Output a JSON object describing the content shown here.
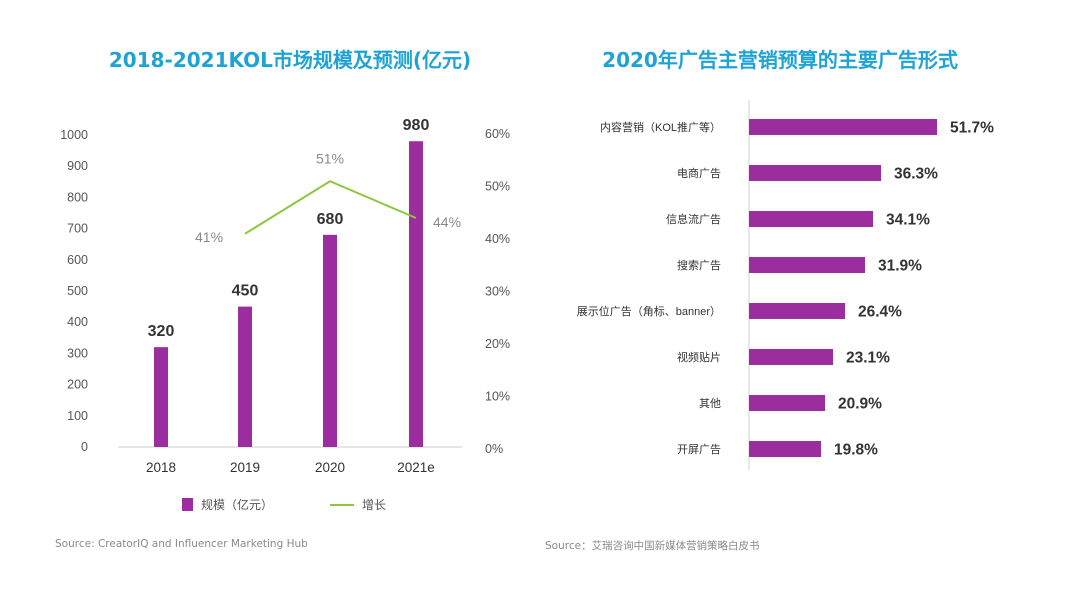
{
  "colors": {
    "title": "#1fa3d6",
    "bar": "#9b2d9f",
    "line": "#8dc63f",
    "axis_text": "#555555",
    "growth_label": "#8a8a8a"
  },
  "chart_data": [
    {
      "type": "bar",
      "title": "2018-2021KOL市场规模及预测(亿元)",
      "categories": [
        "2018",
        "2019",
        "2020",
        "2021e"
      ],
      "series": [
        {
          "name": "规模（亿元）",
          "type": "bar",
          "axis": "left",
          "values": [
            320,
            450,
            680,
            980
          ]
        },
        {
          "name": "增长",
          "type": "line",
          "axis": "right",
          "values": [
            null,
            41,
            51,
            44
          ],
          "labels": [
            "",
            "41%",
            "51%",
            "44%"
          ]
        }
      ],
      "data_labels": [
        "320",
        "450",
        "680",
        "980"
      ],
      "ylim": [
        0,
        1000
      ],
      "yticks": [
        "0",
        "100",
        "200",
        "300",
        "400",
        "500",
        "600",
        "700",
        "800",
        "900",
        "1000"
      ],
      "y2lim": [
        0,
        60
      ],
      "y2ticks": [
        "0%",
        "10%",
        "20%",
        "30%",
        "40%",
        "50%",
        "60%"
      ],
      "legend": [
        "规模（亿元）",
        "增长"
      ],
      "legend_position": "bottom",
      "source": "Source: CreatorIQ and Influencer Marketing Hub"
    },
    {
      "type": "bar",
      "orientation": "horizontal",
      "title": "2020年广告主营销预算的主要广告形式",
      "categories": [
        "内容营销（KOL推广等）",
        "电商广告",
        "信息流广告",
        "搜索广告",
        "展示位广告（角标、banner）",
        "视频贴片",
        "其他",
        "开屏广告"
      ],
      "values": [
        51.7,
        36.3,
        34.1,
        31.9,
        26.4,
        23.1,
        20.9,
        19.8
      ],
      "data_labels": [
        "51.7%",
        "36.3%",
        "34.1%",
        "31.9%",
        "26.4%",
        "23.1%",
        "20.9%",
        "19.8%"
      ],
      "xlim": [
        0,
        60
      ],
      "source": "Source：艾瑞咨询中国新媒体营销策略白皮书"
    }
  ]
}
